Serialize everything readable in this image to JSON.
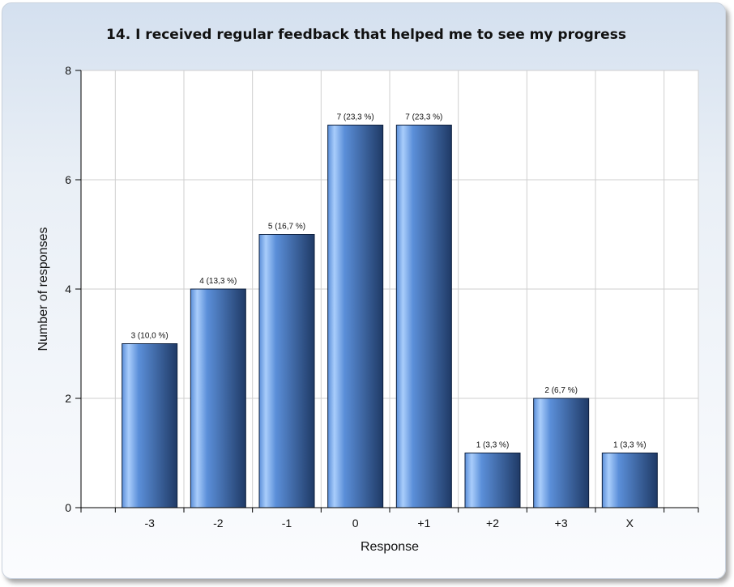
{
  "chart_data": {
    "type": "bar",
    "title": "14. I received regular feedback that helped me to see my progress",
    "xlabel": "Response",
    "ylabel": "Number of responses",
    "categories": [
      "-3",
      "-2",
      "-1",
      "0",
      "+1",
      "+2",
      "+3",
      "X"
    ],
    "values": [
      3,
      4,
      5,
      7,
      7,
      1,
      2,
      1
    ],
    "data_labels": [
      "3 (10,0 %)",
      "4 (13,3 %)",
      "5 (16,7 %)",
      "7 (23,3 %)",
      "7 (23,3 %)",
      "1 (3,3 %)",
      "2 (6,7 %)",
      "1 (3,3 %)"
    ],
    "yticks": [
      0,
      2,
      4,
      6,
      8
    ],
    "ylim": [
      0,
      8
    ],
    "grid": true,
    "bar_color": "#5b8fd9",
    "bar_color_dark": "#1f3a66",
    "bar_color_light": "#a9cdfb"
  }
}
